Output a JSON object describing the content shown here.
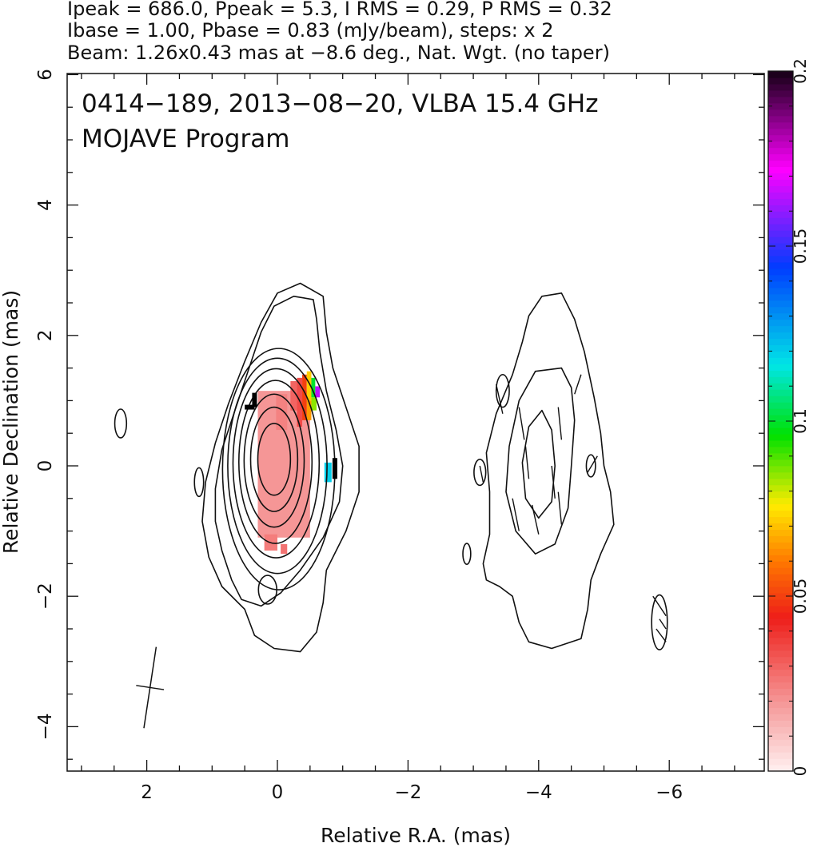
{
  "header": {
    "line1": "Ipeak = 686.0, Ppeak = 5.3, I RMS = 0.29, P RMS = 0.32",
    "line2": "Ibase = 1.00, Pbase = 0.83 (mJy/beam), steps: x 2",
    "line3": "Beam: 1.26x0.43 mas at −8.6 deg., Nat. Wgt. (no taper)"
  },
  "chart_data": {
    "type": "heatmap",
    "title": "0414−189, 2013−08−20, VLBA 15.4 GHz",
    "subtitle": "MOJAVE Program",
    "xlabel": "Relative R.A. (mas)",
    "ylabel": "Relative Declination (mas)",
    "xlim": [
      3.2,
      -7.4
    ],
    "ylim": [
      -4.7,
      6.0
    ],
    "x_ticks": [
      2,
      0,
      -2,
      -4,
      -6
    ],
    "x_tick_labels": [
      "2",
      "0",
      "−2",
      "−4",
      "−6"
    ],
    "y_ticks": [
      -4,
      -2,
      0,
      2,
      4,
      6
    ],
    "y_tick_labels": [
      "−4",
      "−2",
      "0",
      "2",
      "4",
      "6"
    ],
    "colorbar": {
      "range": [
        0,
        0.2
      ],
      "ticks": [
        0,
        0.05,
        0.1,
        0.15,
        0.2
      ],
      "tick_labels": [
        "0",
        "0.05",
        "0.1",
        "0.15",
        "0.2"
      ]
    },
    "contour_base_mJy": 1.0,
    "contour_step": 2,
    "peak_intensity_mJy": 686.0,
    "peak_polarization_mJy": 5.3,
    "core_contours": [
      {
        "cx": 0.05,
        "cy": 0.1,
        "rx": 0.25,
        "ry": 0.55
      },
      {
        "cx": 0.05,
        "cy": 0.1,
        "rx": 0.36,
        "ry": 0.8
      },
      {
        "cx": 0.05,
        "cy": 0.08,
        "rx": 0.46,
        "ry": 1.02
      },
      {
        "cx": 0.03,
        "cy": 0.06,
        "rx": 0.56,
        "ry": 1.25
      },
      {
        "cx": 0.02,
        "cy": 0.04,
        "rx": 0.66,
        "ry": 1.45
      },
      {
        "cx": 0.0,
        "cy": 0.0,
        "rx": 0.76,
        "ry": 1.65
      },
      {
        "cx": -0.02,
        "cy": -0.05,
        "rx": 0.86,
        "ry": 1.85
      }
    ],
    "outer_contours": [
      [
        [
          -0.55,
          2.55
        ],
        [
          -0.25,
          2.6
        ],
        [
          0.05,
          2.45
        ],
        [
          0.25,
          2.05
        ],
        [
          0.45,
          1.45
        ],
        [
          0.65,
          0.85
        ],
        [
          0.85,
          0.25
        ],
        [
          0.95,
          -0.35
        ],
        [
          0.95,
          -0.85
        ],
        [
          0.85,
          -1.3
        ],
        [
          0.7,
          -1.75
        ],
        [
          0.55,
          -2.05
        ],
        [
          0.25,
          -2.15
        ],
        [
          -0.05,
          -1.95
        ],
        [
          -0.35,
          -1.6
        ],
        [
          -0.7,
          -1.1
        ],
        [
          -0.95,
          -0.55
        ],
        [
          -1.0,
          0.0
        ],
        [
          -0.9,
          0.55
        ],
        [
          -0.75,
          1.15
        ],
        [
          -0.65,
          1.75
        ],
        [
          -0.6,
          2.25
        ]
      ],
      [
        [
          -0.7,
          2.6
        ],
        [
          -0.35,
          2.8
        ],
        [
          0.0,
          2.65
        ],
        [
          0.25,
          2.2
        ],
        [
          0.5,
          1.6
        ],
        [
          0.75,
          0.95
        ],
        [
          0.95,
          0.35
        ],
        [
          1.1,
          -0.25
        ],
        [
          1.15,
          -0.85
        ],
        [
          1.05,
          -1.4
        ],
        [
          0.85,
          -1.85
        ],
        [
          0.5,
          -2.2
        ],
        [
          0.35,
          -2.6
        ],
        [
          0.05,
          -2.8
        ],
        [
          -0.35,
          -2.85
        ],
        [
          -0.6,
          -2.55
        ],
        [
          -0.7,
          -2.1
        ],
        [
          -0.75,
          -1.6
        ],
        [
          -1.05,
          -1.0
        ],
        [
          -1.25,
          -0.4
        ],
        [
          -1.25,
          0.3
        ],
        [
          -1.05,
          0.9
        ],
        [
          -0.85,
          1.5
        ],
        [
          -0.75,
          2.05
        ]
      ]
    ],
    "small_contours": [
      {
        "cx": 2.4,
        "cy": 0.65,
        "rx": 0.09,
        "ry": 0.22
      },
      {
        "cx": 1.2,
        "cy": -0.25,
        "rx": 0.07,
        "ry": 0.22
      },
      {
        "cx": -2.9,
        "cy": -1.35,
        "rx": 0.06,
        "ry": 0.16
      },
      {
        "cx": 0.15,
        "cy": -1.9,
        "rx": 0.14,
        "ry": 0.22
      }
    ],
    "jet_contours": [
      [
        [
          -4.35,
          2.65
        ],
        [
          -4.05,
          2.6
        ],
        [
          -3.85,
          2.3
        ],
        [
          -3.75,
          1.9
        ],
        [
          -3.6,
          1.4
        ],
        [
          -3.35,
          0.8
        ],
        [
          -3.2,
          0.2
        ],
        [
          -3.25,
          -0.4
        ],
        [
          -3.25,
          -1.05
        ],
        [
          -3.15,
          -1.5
        ],
        [
          -3.2,
          -1.75
        ],
        [
          -3.4,
          -1.85
        ],
        [
          -3.6,
          -2.0
        ],
        [
          -3.7,
          -2.4
        ],
        [
          -3.85,
          -2.7
        ],
        [
          -4.2,
          -2.8
        ],
        [
          -4.65,
          -2.65
        ],
        [
          -4.75,
          -2.2
        ],
        [
          -4.8,
          -1.75
        ],
        [
          -4.95,
          -1.35
        ],
        [
          -5.15,
          -0.9
        ],
        [
          -5.1,
          -0.4
        ],
        [
          -5.0,
          0.0
        ],
        [
          -4.95,
          0.5
        ],
        [
          -4.85,
          1.05
        ],
        [
          -4.7,
          1.75
        ],
        [
          -4.55,
          2.25
        ]
      ],
      [
        [
          -4.35,
          1.5
        ],
        [
          -3.95,
          1.45
        ],
        [
          -3.7,
          1.0
        ],
        [
          -3.55,
          0.3
        ],
        [
          -3.5,
          -0.4
        ],
        [
          -3.65,
          -1.0
        ],
        [
          -3.95,
          -1.35
        ],
        [
          -4.25,
          -1.2
        ],
        [
          -4.45,
          -0.65
        ],
        [
          -4.5,
          0.0
        ],
        [
          -4.55,
          0.7
        ],
        [
          -4.5,
          1.2
        ]
      ],
      [
        [
          -4.05,
          0.85
        ],
        [
          -3.85,
          0.6
        ],
        [
          -3.75,
          0.05
        ],
        [
          -3.8,
          -0.5
        ],
        [
          -4.0,
          -0.8
        ],
        [
          -4.2,
          -0.55
        ],
        [
          -4.25,
          0.0
        ],
        [
          -4.2,
          0.55
        ]
      ]
    ],
    "jet_small_contours": [
      {
        "cx": -3.45,
        "cy": 1.15,
        "rx": 0.1,
        "ry": 0.25
      },
      {
        "cx": -3.1,
        "cy": -0.1,
        "rx": 0.09,
        "ry": 0.2
      },
      {
        "cx": -4.8,
        "cy": 0.0,
        "rx": 0.07,
        "ry": 0.17
      },
      {
        "cx": -5.85,
        "cy": -2.4,
        "rx": 0.12,
        "ry": 0.42
      }
    ],
    "fractional_polarization_pixels": [
      {
        "x0": 0.3,
        "x1": -0.5,
        "y0": -1.1,
        "y1": 1.15,
        "frac": 0.02
      },
      {
        "x0": 0.2,
        "x1": 0.0,
        "y0": -1.3,
        "y1": -1.05,
        "frac": 0.025
      },
      {
        "x0": -0.05,
        "x1": -0.15,
        "y0": -1.35,
        "y1": -1.2,
        "frac": 0.027
      },
      {
        "x0": 0.02,
        "x1": -0.15,
        "y0": 0.55,
        "y1": 1.1,
        "frac": 0.024
      },
      {
        "x0": -0.2,
        "x1": -0.3,
        "y0": 0.85,
        "y1": 1.3,
        "frac": 0.03
      },
      {
        "x0": -0.3,
        "x1": -0.38,
        "y0": 0.6,
        "y1": 1.35,
        "frac": 0.035
      },
      {
        "x0": -0.38,
        "x1": -0.45,
        "y0": 0.7,
        "y1": 1.4,
        "frac": 0.05
      },
      {
        "x0": -0.45,
        "x1": -0.52,
        "y0": 1.0,
        "y1": 1.45,
        "frac": 0.072
      },
      {
        "x0": -0.45,
        "x1": -0.52,
        "y0": 0.7,
        "y1": 1.0,
        "frac": 0.065
      },
      {
        "x0": -0.52,
        "x1": -0.58,
        "y0": 1.05,
        "y1": 1.35,
        "frac": 0.1
      },
      {
        "x0": -0.52,
        "x1": -0.6,
        "y0": 0.85,
        "y1": 1.05,
        "frac": 0.085
      },
      {
        "x0": -0.58,
        "x1": -0.65,
        "y0": 1.05,
        "y1": 1.22,
        "frac": 0.165
      },
      {
        "x0": -0.72,
        "x1": -0.83,
        "y0": -0.25,
        "y1": 0.05,
        "frac": 0.12
      }
    ],
    "evpa_ticks": [
      {
        "x0": 0.5,
        "y0": 0.9,
        "x1": 0.35,
        "y1": 0.9
      },
      {
        "x0": 0.35,
        "y0": 0.9,
        "x1": 0.35,
        "y1": 1.12
      },
      {
        "x0": -0.88,
        "y0": -0.2,
        "x1": -0.88,
        "y1": 0.12
      }
    ],
    "jet_vectors": [
      {
        "x0": -3.35,
        "y0": 1.25,
        "x1": -3.45,
        "y1": 0.8
      },
      {
        "x0": -3.7,
        "y0": 0.9,
        "x1": -3.78,
        "y1": 0.4
      },
      {
        "x0": -3.8,
        "y0": 0.3,
        "x1": -3.85,
        "y1": -0.2
      },
      {
        "x0": -3.6,
        "y0": -0.5,
        "x1": -3.7,
        "y1": -1.0
      },
      {
        "x0": -3.9,
        "y0": -0.6,
        "x1": -4.0,
        "y1": -1.05
      },
      {
        "x0": -4.3,
        "y0": 0.9,
        "x1": -4.35,
        "y1": 0.4
      },
      {
        "x0": -4.2,
        "y0": 0.0,
        "x1": -4.25,
        "y1": -0.5
      },
      {
        "x0": -4.3,
        "y0": -0.4,
        "x1": -4.35,
        "y1": -0.9
      },
      {
        "x0": -4.55,
        "y0": 1.1,
        "x1": -4.65,
        "y1": 1.4
      },
      {
        "x0": -3.1,
        "y0": 0.0,
        "x1": -3.15,
        "y1": -0.25
      },
      {
        "x0": -4.75,
        "y0": -0.1,
        "x1": -4.9,
        "y1": 0.15
      },
      {
        "x0": -5.75,
        "y0": -2.0,
        "x1": -5.95,
        "y1": -2.3
      },
      {
        "x0": -5.85,
        "y0": -2.35,
        "x1": -5.95,
        "y1": -2.5
      },
      {
        "x0": -5.8,
        "y0": -2.5,
        "x1": -5.95,
        "y1": -2.7
      }
    ],
    "beam": {
      "cx": 1.95,
      "cy": -3.4,
      "major": 1.26,
      "minor": 0.43,
      "pa_deg": -8.6
    }
  }
}
